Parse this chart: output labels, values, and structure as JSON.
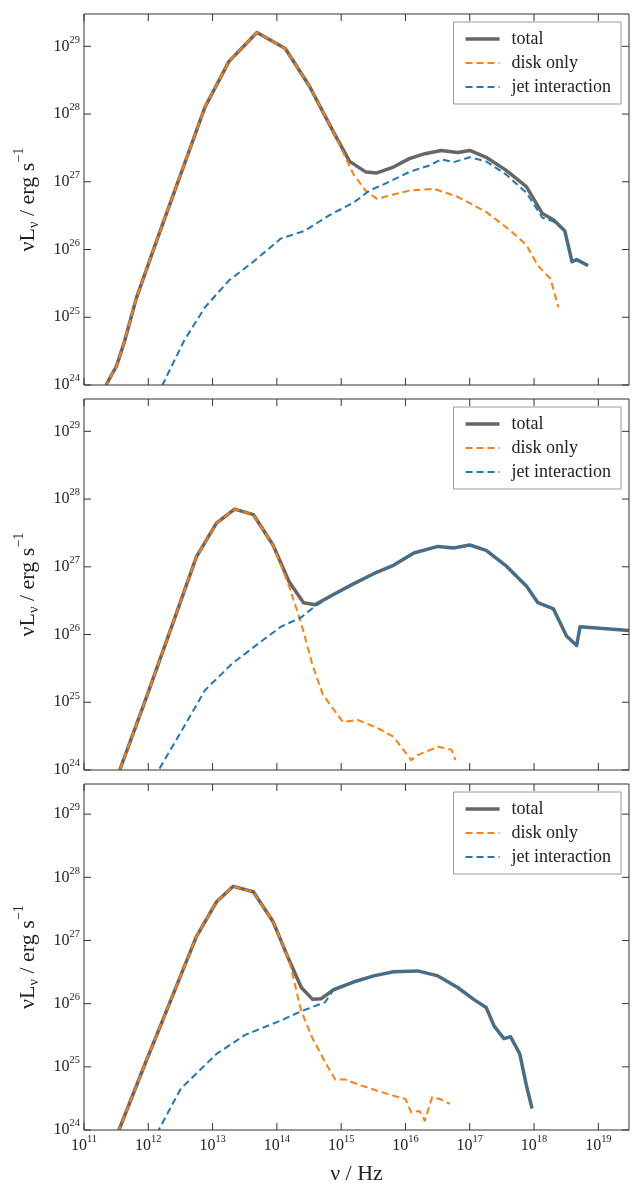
{
  "chart_data": [
    {
      "type": "line",
      "log": "xy",
      "xlim": [
        100000000000.0,
        3e+19
      ],
      "ylim": [
        1e+24,
        3e+29
      ],
      "ylabel": "νL$_{ν}$ / erg s$^{−1}$",
      "tick_labels": "y",
      "legend": "top right",
      "xticks": [
        {
          "value": 100000000000.0,
          "label": null
        },
        {
          "value": 1000000000000.0,
          "label": null
        },
        {
          "value": 10000000000000.0,
          "label": null
        },
        {
          "value": 100000000000000.0,
          "label": null
        },
        {
          "value": 1000000000000000.0,
          "label": null
        },
        {
          "value": 1e+16,
          "label": null
        },
        {
          "value": 1e+17,
          "label": null
        },
        {
          "value": 1e+18,
          "label": null
        },
        {
          "value": 1e+19,
          "label": null
        }
      ],
      "yticks": [
        {
          "value": 1e+24,
          "label": "10$^{24}$"
        },
        {
          "value": 1e+25,
          "label": "10$^{25}$"
        },
        {
          "value": 1e+26,
          "label": "10$^{26}$"
        },
        {
          "value": 1e+27,
          "label": "10$^{27}$"
        },
        {
          "value": 1e+28,
          "label": "10$^{28}$"
        },
        {
          "value": 1e+29,
          "label": "10$^{29}$"
        }
      ],
      "series": [
        {
          "name": "total",
          "color": "#666666",
          "line_style": "solid",
          "x": [
            220000000000.0,
            320000000000.0,
            430000000000.0,
            650000000000.0,
            1350000000000.0,
            3200000000000.0,
            7600000000000.0,
            18000000000000.0,
            49000000000000.0,
            135000000000000.0,
            320000000000000.0,
            760000000000000.0,
            1350000000000000.0,
            2400000000000000.0,
            3600000000000000.0,
            6500000000000000.0,
            1.15e+16,
            2e+16,
            3.6e+16,
            6.5e+16,
            1e+17,
            1.8e+17,
            3.6e+17,
            7.6e+17,
            1.35e+18,
            2e+18,
            3e+18,
            3.9e+18,
            4.6e+18,
            6.9e+18
          ],
          "values": [
            1e+24,
            1.9e+24,
            4.5e+24,
            1.9e+25,
            1.35e+26,
            1.3e+27,
            1.26e+28,
            6e+28,
            1.6e+29,
            9.3e+28,
            2.6e+28,
            5.4e+27,
            2e+27,
            1.4e+27,
            1.35e+27,
            1.65e+27,
            2.2e+27,
            2.6e+27,
            2.9e+27,
            2.7e+27,
            2.9e+27,
            2.3e+27,
            1.5e+27,
            8.5e+26,
            3.4e+26,
            2.75e+26,
            1.9e+26,
            6.6e+25,
            7.1e+25,
            5.8e+25
          ]
        },
        {
          "name": "disk only",
          "color": "#ff7f0e",
          "line_style": "dashed",
          "x": [
            220000000000.0,
            320000000000.0,
            430000000000.0,
            650000000000.0,
            1350000000000.0,
            3200000000000.0,
            7600000000000.0,
            18000000000000.0,
            49000000000000.0,
            135000000000000.0,
            320000000000000.0,
            760000000000000.0,
            1550000000000000.0,
            2400000000000000.0,
            3600000000000000.0,
            6500000000000000.0,
            1.15e+16,
            2.75e+16,
            6.5e+16,
            1.8e+17,
            4.3e+17,
            7.6e+17,
            1.15e+18,
            1.8e+18,
            2.4e+18
          ],
          "values": [
            1e+24,
            1.9e+24,
            4.5e+24,
            1.9e+25,
            1.35e+26,
            1.3e+27,
            1.26e+28,
            6e+28,
            1.6e+29,
            9.3e+28,
            2.6e+28,
            5.4e+27,
            1.3e+27,
            7.4e+26,
            5.6e+26,
            6.5e+26,
            7.4e+26,
            7.9e+26,
            6e+26,
            3.6e+26,
            1.9e+26,
            1.17e+26,
            5.8e+25,
            3.7e+25,
            1.4e+25
          ]
        },
        {
          "name": "jet interaction",
          "color": "#1f77b4",
          "line_style": "dashed",
          "x": [
            1660000000000.0,
            3600000000000.0,
            7600000000000.0,
            18000000000000.0,
            43000000000000.0,
            115000000000000.0,
            275000000000000.0,
            650000000000000.0,
            1550000000000000.0,
            2750000000000000.0,
            5600000000000000.0,
            1.15e+16,
            2.4e+16,
            3.6e+16,
            5.6e+16,
            1e+17,
            1.8e+17,
            3.6e+17,
            7.6e+17,
            1.35e+18,
            2e+18,
            3e+18,
            3.9e+18,
            4.6e+18,
            6.9e+18
          ],
          "values": [
            1e+24,
            4.5e+24,
            1.4e+25,
            3.5e+25,
            6.6e+25,
            1.45e+26,
            1.9e+26,
            3.2e+26,
            4.9e+26,
            7.4e+26,
            1e+27,
            1.4e+27,
            1.75e+27,
            2.15e+27,
            1.95e+27,
            2.3e+27,
            2e+27,
            1.3e+27,
            6.9e+26,
            2.95e+26,
            2.6e+26,
            1.9e+26,
            6.6e+25,
            7.1e+25,
            5.8e+25
          ]
        }
      ]
    },
    {
      "type": "line",
      "log": "xy",
      "xlim": [
        100000000000.0,
        3e+19
      ],
      "ylim": [
        1e+24,
        3e+29
      ],
      "ylabel": "νL$_{ν}$ / erg s$^{−1}$",
      "tick_labels": "y",
      "legend": "top right",
      "xticks": [
        {
          "value": 100000000000.0,
          "label": null
        },
        {
          "value": 1000000000000.0,
          "label": null
        },
        {
          "value": 10000000000000.0,
          "label": null
        },
        {
          "value": 100000000000000.0,
          "label": null
        },
        {
          "value": 1000000000000000.0,
          "label": null
        },
        {
          "value": 1e+16,
          "label": null
        },
        {
          "value": 1e+17,
          "label": null
        },
        {
          "value": 1e+18,
          "label": null
        },
        {
          "value": 1e+19,
          "label": null
        }
      ],
      "yticks": [
        {
          "value": 1e+24,
          "label": "10$^{24}$"
        },
        {
          "value": 1e+25,
          "label": "10$^{25}$"
        },
        {
          "value": 1e+26,
          "label": "10$^{26}$"
        },
        {
          "value": 1e+27,
          "label": "10$^{27}$"
        },
        {
          "value": 1e+28,
          "label": "10$^{28}$"
        },
        {
          "value": 1e+29,
          "label": "10$^{29}$"
        }
      ],
      "series": [
        {
          "name": "total",
          "color": "#666666",
          "line_style": "solid",
          "x": [
            360000000000.0,
            870000000000.0,
            2400000000000.0,
            5600000000000.0,
            11500000000000.0,
            22000000000000.0,
            43000000000000.0,
            87000000000000.0,
            155000000000000.0,
            260000000000000.0,
            390000000000000.0,
            760000000000000.0,
            1550000000000000.0,
            3200000000000000.0,
            6500000000000000.0,
            1.35e+16,
            3.2e+16,
            5.6e+16,
            1e+17,
            1.8e+17,
            3.6e+17,
            7.6e+17,
            1.15e+18,
            2e+18,
            3.2e+18,
            4.6e+18,
            5.2e+18,
            3e+19
          ],
          "values": [
            1e+24,
            9.8e+24,
            1.45e+26,
            1.4e+27,
            4.4e+27,
            7.1e+27,
            5.9e+27,
            2.1e+27,
            6e+26,
            2.95e+26,
            2.75e+26,
            3.9e+26,
            5.6e+26,
            7.9e+26,
            1.05e+27,
            1.6e+27,
            2e+27,
            1.9e+27,
            2.1e+27,
            1.75e+27,
            1.05e+27,
            5.2e+26,
            2.95e+26,
            2.4e+26,
            9.5e+25,
            6.9e+25,
            1.3e+26,
            1.15e+26
          ]
        },
        {
          "name": "disk only",
          "color": "#ff7f0e",
          "line_style": "dashed",
          "x": [
            360000000000.0,
            870000000000.0,
            2400000000000.0,
            5600000000000.0,
            11500000000000.0,
            22000000000000.0,
            43000000000000.0,
            87000000000000.0,
            155000000000000.0,
            240000000000000.0,
            360000000000000.0,
            520000000000000.0,
            760000000000000.0,
            1070000000000000.0,
            1800000000000000.0,
            3600000000000000.0,
            6500000000000000.0,
            1.23e+16,
            1.55e+16,
            3.2e+16,
            5.2e+16,
            6e+16
          ],
          "values": [
            1e+24,
            9.8e+24,
            1.45e+26,
            1.4e+27,
            4.4e+27,
            7.1e+27,
            5.9e+27,
            2.1e+27,
            5.2e+26,
            1.45e+26,
            3.5e+25,
            1.3e+25,
            7.9e+24,
            5.1e+24,
            5.5e+24,
            4.2e+24,
            3.1e+24,
            1.4e+24,
            1.66e+24,
            2.2e+24,
            2e+24,
            1.4e+24
          ]
        },
        {
          "name": "jet interaction",
          "color": "#1f77b4",
          "line_style": "dashed",
          "x": [
            1450000000000.0,
            3200000000000.0,
            7600000000000.0,
            20000000000000.0,
            49000000000000.0,
            115000000000000.0,
            240000000000000.0,
            390000000000000.0,
            760000000000000.0,
            1550000000000000.0,
            3200000000000000.0,
            6500000000000000.0,
            1.35e+16,
            3.2e+16,
            5.6e+16,
            1e+17,
            1.8e+17,
            3.6e+17,
            7.6e+17,
            1.15e+18,
            2e+18,
            3.2e+18,
            4.6e+18,
            5.2e+18,
            3e+19
          ],
          "values": [
            1e+24,
            3.6e+24,
            1.5e+25,
            3.7e+25,
            7.1e+25,
            1.3e+26,
            1.8e+26,
            2.6e+26,
            3.9e+26,
            5.6e+26,
            7.9e+26,
            1.05e+27,
            1.6e+27,
            2e+27,
            1.9e+27,
            2.1e+27,
            1.75e+27,
            1.05e+27,
            5.2e+26,
            2.95e+26,
            2.4e+26,
            9.5e+25,
            6.9e+25,
            1.3e+26,
            1.15e+26
          ]
        }
      ]
    },
    {
      "type": "line",
      "log": "xy",
      "xlim": [
        100000000000.0,
        3e+19
      ],
      "ylim": [
        1e+24,
        3e+29
      ],
      "xlabel": "ν / Hz",
      "ylabel": "νL$_{ν}$ / erg s$^{−1}$",
      "legend": "top right",
      "xticks": [
        {
          "value": 100000000000.0,
          "label": "10$^{11}$"
        },
        {
          "value": 1000000000000.0,
          "label": "10$^{12}$"
        },
        {
          "value": 10000000000000.0,
          "label": "10$^{13}$"
        },
        {
          "value": 100000000000000.0,
          "label": "10$^{14}$"
        },
        {
          "value": 1000000000000000.0,
          "label": "10$^{15}$"
        },
        {
          "value": 1e+16,
          "label": "10$^{16}$"
        },
        {
          "value": 1e+17,
          "label": "10$^{17}$"
        },
        {
          "value": 1e+18,
          "label": "10$^{18}$"
        },
        {
          "value": 1e+19,
          "label": "10$^{19}$"
        }
      ],
      "yticks": [
        {
          "value": 1e+24,
          "label": "10$^{24}$"
        },
        {
          "value": 1e+25,
          "label": "10$^{25}$"
        },
        {
          "value": 1e+26,
          "label": "10$^{26}$"
        },
        {
          "value": 1e+27,
          "label": "10$^{27}$"
        },
        {
          "value": 1e+28,
          "label": "10$^{28}$"
        },
        {
          "value": 1e+29,
          "label": "10$^{29}$"
        }
      ],
      "series": [
        {
          "name": "total",
          "color": "#666666",
          "line_style": "solid",
          "x": [
            350000000000.0,
            870000000000.0,
            2400000000000.0,
            5600000000000.0,
            11500000000000.0,
            21000000000000.0,
            43000000000000.0,
            87000000000000.0,
            155000000000000.0,
            240000000000000.0,
            360000000000000.0,
            490000000000000.0,
            760000000000000.0,
            1550000000000000.0,
            3200000000000000.0,
            6500000000000000.0,
            1.55e+16,
            3.2e+16,
            6.5e+16,
            1.15e+17,
            1.8e+17,
            2.4e+17,
            3.4e+17,
            4.3e+17,
            6e+17,
            7.6e+17,
            9.3e+17
          ],
          "values": [
            1e+24,
            1.05e+25,
            1.35e+26,
            1.15e+27,
            4.1e+27,
            7.2e+27,
            5.9e+27,
            2e+27,
            4.9e+26,
            1.8e+26,
            1.17e+26,
            1.2e+26,
            1.66e+26,
            2.2e+26,
            2.75e+26,
            3.2e+26,
            3.3e+26,
            2.75e+26,
            1.8e+26,
            1.17e+26,
            8.7e+25,
            4.4e+25,
            2.8e+25,
            3e+25,
            1.6e+25,
            5.1e+24,
            2.2e+24
          ]
        },
        {
          "name": "disk only",
          "color": "#ff7f0e",
          "line_style": "dashed",
          "x": [
            350000000000.0,
            870000000000.0,
            2400000000000.0,
            5600000000000.0,
            11500000000000.0,
            21000000000000.0,
            43000000000000.0,
            87000000000000.0,
            155000000000000.0,
            240000000000000.0,
            360000000000000.0,
            560000000000000.0,
            810000000000000.0,
            1150000000000000.0,
            2000000000000000.0,
            3600000000000000.0,
            6500000000000000.0,
            1e+16,
            1.23e+16,
            1.66e+16,
            2e+16,
            2.6e+16,
            3.4e+16,
            4.9e+16
          ],
          "values": [
            1e+24,
            1.05e+25,
            1.35e+26,
            1.15e+27,
            4.1e+27,
            7.2e+27,
            5.9e+27,
            2e+27,
            4.9e+26,
            7.6e+25,
            2.8e+25,
            1.2e+25,
            6.3e+24,
            6.3e+24,
            5.1e+24,
            4.2e+24,
            3.5e+24,
            3.1e+24,
            1.9e+24,
            2e+24,
            1.4e+24,
            3.3e+24,
            3.1e+24,
            2.6e+24
          ]
        },
        {
          "name": "jet interaction",
          "color": "#1f77b4",
          "line_style": "dashed",
          "x": [
            1450000000000.0,
            3200000000000.0,
            11500000000000.0,
            32000000000000.0,
            115000000000000.0,
            240000000000000.0,
            560000000000000.0,
            760000000000000.0,
            1550000000000000.0,
            3200000000000000.0,
            6500000000000000.0,
            1.55e+16,
            3.2e+16,
            6.5e+16,
            1.15e+17,
            1.8e+17,
            2.4e+17,
            3.4e+17,
            4.3e+17,
            6e+17,
            7.6e+17,
            9.3e+17
          ],
          "values": [
            1e+24,
            4.5e+24,
            1.6e+25,
            3.2e+25,
            5.4e+25,
            7.6e+25,
            1.05e+26,
            1.66e+26,
            2.2e+26,
            2.75e+26,
            3.2e+26,
            3.3e+26,
            2.75e+26,
            1.8e+26,
            1.17e+26,
            8.7e+25,
            4.4e+25,
            2.8e+25,
            3e+25,
            1.6e+25,
            5.1e+24,
            2.2e+24
          ]
        }
      ]
    }
  ]
}
